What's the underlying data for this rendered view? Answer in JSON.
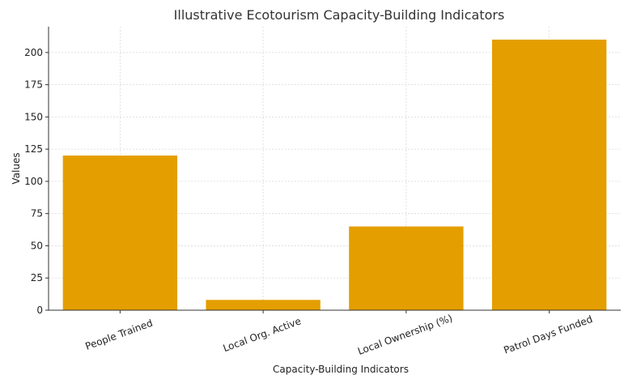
{
  "chart_data": {
    "type": "bar",
    "title": "Illustrative Ecotourism Capacity-Building Indicators",
    "xlabel": "Capacity-Building Indicators",
    "ylabel": "Values",
    "categories": [
      "People Trained",
      "Local Org. Active",
      "Local Ownership (%)",
      "Patrol Days Funded"
    ],
    "values": [
      120,
      8,
      65,
      210
    ],
    "ylim": [
      0,
      220
    ],
    "yticks": [
      0,
      25,
      50,
      75,
      100,
      125,
      150,
      175,
      200
    ],
    "grid": true,
    "bar_color": "#E49E00"
  }
}
